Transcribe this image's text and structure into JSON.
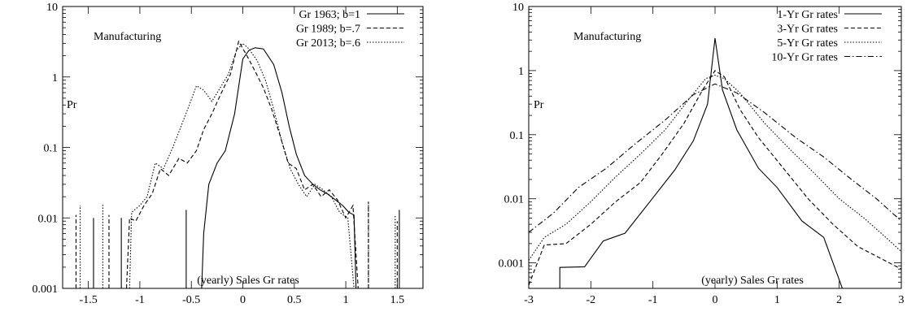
{
  "chart_data": [
    {
      "type": "line",
      "annotations": {
        "sector": "Manufacturing",
        "ylabel": "Pr",
        "xlabel": "(yearly) Sales Gr rates"
      },
      "y_scale": "log",
      "ylim": [
        0.001,
        10
      ],
      "xlim": [
        -1.75,
        1.75
      ],
      "x_ticks": [
        {
          "v": -1.5,
          "label": "-1.5"
        },
        {
          "v": -1,
          "label": "-1"
        },
        {
          "v": -0.5,
          "label": "-0.5"
        },
        {
          "v": 0,
          "label": "0"
        },
        {
          "v": 0.5,
          "label": "0.5"
        },
        {
          "v": 1,
          "label": "1"
        },
        {
          "v": 1.5,
          "label": "1.5"
        }
      ],
      "y_ticks": [
        {
          "v": 0.001,
          "label": "0.001"
        },
        {
          "v": 0.01,
          "label": "0.01"
        },
        {
          "v": 0.1,
          "label": "0.1"
        },
        {
          "v": 1,
          "label": "1"
        },
        {
          "v": 10,
          "label": "10"
        }
      ],
      "legend_position": "top-right",
      "series": [
        {
          "name": "Gr 1963; b=1",
          "dash": "",
          "points": [
            [
              -0.4,
              0.001
            ],
            [
              -0.38,
              0.006
            ],
            [
              -0.33,
              0.03
            ],
            [
              -0.25,
              0.06
            ],
            [
              -0.17,
              0.09
            ],
            [
              -0.08,
              0.3
            ],
            [
              0.0,
              1.8
            ],
            [
              0.06,
              2.4
            ],
            [
              0.12,
              2.6
            ],
            [
              0.2,
              2.5
            ],
            [
              0.3,
              1.5
            ],
            [
              0.38,
              0.6
            ],
            [
              0.45,
              0.2
            ],
            [
              0.52,
              0.08
            ],
            [
              0.6,
              0.04
            ],
            [
              0.68,
              0.03
            ],
            [
              0.75,
              0.025
            ],
            [
              0.82,
              0.022
            ],
            [
              0.9,
              0.018
            ],
            [
              0.97,
              0.015
            ],
            [
              1.03,
              0.012
            ],
            [
              1.08,
              0.011
            ],
            [
              1.1,
              0.001
            ]
          ],
          "spikes": [
            [
              -1.45,
              0.01
            ],
            [
              -1.18,
              0.01
            ],
            [
              -0.55,
              0.013
            ],
            [
              1.52,
              0.013
            ],
            [
              1.75,
              0.009
            ]
          ]
        },
        {
          "name": "Gr 1989; b=.7",
          "dash": "5,3",
          "points": [
            [
              -1.13,
              0.001
            ],
            [
              -1.1,
              0.01
            ],
            [
              -1.04,
              0.009
            ],
            [
              -0.96,
              0.015
            ],
            [
              -0.88,
              0.022
            ],
            [
              -0.8,
              0.05
            ],
            [
              -0.72,
              0.04
            ],
            [
              -0.62,
              0.07
            ],
            [
              -0.54,
              0.06
            ],
            [
              -0.45,
              0.09
            ],
            [
              -0.38,
              0.18
            ],
            [
              -0.3,
              0.3
            ],
            [
              -0.22,
              0.55
            ],
            [
              -0.12,
              1.1
            ],
            [
              -0.04,
              3.2
            ],
            [
              0.04,
              2.0
            ],
            [
              0.12,
              1.2
            ],
            [
              0.2,
              0.7
            ],
            [
              0.28,
              0.35
            ],
            [
              0.36,
              0.15
            ],
            [
              0.44,
              0.06
            ],
            [
              0.52,
              0.05
            ],
            [
              0.6,
              0.025
            ],
            [
              0.68,
              0.03
            ],
            [
              0.76,
              0.02
            ],
            [
              0.84,
              0.025
            ],
            [
              0.92,
              0.018
            ],
            [
              1.0,
              0.01
            ],
            [
              1.07,
              0.015
            ],
            [
              1.12,
              0.001
            ]
          ],
          "spikes": [
            [
              -1.62,
              0.011
            ],
            [
              -1.3,
              0.011
            ],
            [
              1.22,
              0.017
            ],
            [
              1.5,
              0.009
            ]
          ]
        },
        {
          "name": "Gr 2013; b=.6",
          "dash": "1.5,2",
          "points": [
            [
              -1.1,
              0.001
            ],
            [
              -1.08,
              0.012
            ],
            [
              -1.0,
              0.015
            ],
            [
              -0.93,
              0.02
            ],
            [
              -0.85,
              0.06
            ],
            [
              -0.77,
              0.05
            ],
            [
              -0.68,
              0.1
            ],
            [
              -0.6,
              0.2
            ],
            [
              -0.52,
              0.4
            ],
            [
              -0.45,
              0.75
            ],
            [
              -0.38,
              0.65
            ],
            [
              -0.3,
              0.45
            ],
            [
              -0.22,
              0.7
            ],
            [
              -0.14,
              1.1
            ],
            [
              -0.06,
              2.4
            ],
            [
              0.0,
              3.0
            ],
            [
              0.06,
              2.5
            ],
            [
              0.14,
              1.7
            ],
            [
              0.22,
              0.9
            ],
            [
              0.3,
              0.35
            ],
            [
              0.38,
              0.12
            ],
            [
              0.46,
              0.05
            ],
            [
              0.54,
              0.03
            ],
            [
              0.62,
              0.02
            ],
            [
              0.7,
              0.03
            ],
            [
              0.78,
              0.025
            ],
            [
              0.86,
              0.02
            ],
            [
              0.94,
              0.012
            ],
            [
              1.02,
              0.01
            ],
            [
              1.08,
              0.001
            ]
          ],
          "spikes": [
            [
              -1.58,
              0.015
            ],
            [
              -1.36,
              0.016
            ],
            [
              1.22,
              0.017
            ],
            [
              1.48,
              0.011
            ]
          ]
        }
      ]
    },
    {
      "type": "line",
      "annotations": {
        "sector": "Manufacturing",
        "ylabel": "Pr",
        "xlabel": "(yearly) Sales Gr rates"
      },
      "y_scale": "log",
      "ylim": [
        0.0004,
        10
      ],
      "xlim": [
        -3,
        3
      ],
      "x_ticks": [
        {
          "v": -3,
          "label": "-3"
        },
        {
          "v": -2,
          "label": "-2"
        },
        {
          "v": -1,
          "label": "-1"
        },
        {
          "v": 0,
          "label": "0"
        },
        {
          "v": 1,
          "label": "1"
        },
        {
          "v": 2,
          "label": "2"
        },
        {
          "v": 3,
          "label": "3"
        }
      ],
      "y_ticks": [
        {
          "v": 0.001,
          "label": "0.001"
        },
        {
          "v": 0.01,
          "label": "0.01"
        },
        {
          "v": 0.1,
          "label": "0.1"
        },
        {
          "v": 1,
          "label": "1"
        },
        {
          "v": 10,
          "label": "10"
        }
      ],
      "legend_position": "top-right",
      "series": [
        {
          "name": "1-Yr Gr rates",
          "dash": "",
          "points": [
            [
              -2.5,
              0.0004
            ],
            [
              -2.5,
              0.00085
            ],
            [
              -2.1,
              0.00087
            ],
            [
              -1.8,
              0.0022
            ],
            [
              -1.45,
              0.0029
            ],
            [
              -1.05,
              0.009
            ],
            [
              -0.65,
              0.028
            ],
            [
              -0.35,
              0.08
            ],
            [
              -0.12,
              0.3
            ],
            [
              0.0,
              3.2
            ],
            [
              0.12,
              0.5
            ],
            [
              0.35,
              0.12
            ],
            [
              0.7,
              0.03
            ],
            [
              1.0,
              0.015
            ],
            [
              1.4,
              0.0045
            ],
            [
              1.75,
              0.0025
            ],
            [
              2.05,
              0.0004
            ]
          ]
        },
        {
          "name": "3-Yr Gr rates",
          "dash": "5,3",
          "points": [
            [
              -3.0,
              0.00045
            ],
            [
              -2.75,
              0.0019
            ],
            [
              -2.4,
              0.002
            ],
            [
              -2.0,
              0.004
            ],
            [
              -1.6,
              0.009
            ],
            [
              -1.2,
              0.018
            ],
            [
              -0.85,
              0.05
            ],
            [
              -0.5,
              0.15
            ],
            [
              -0.2,
              0.5
            ],
            [
              0.0,
              1.0
            ],
            [
              0.15,
              0.8
            ],
            [
              0.4,
              0.25
            ],
            [
              0.7,
              0.09
            ],
            [
              1.1,
              0.03
            ],
            [
              1.5,
              0.01
            ],
            [
              1.9,
              0.004
            ],
            [
              2.3,
              0.0018
            ],
            [
              2.65,
              0.0012
            ],
            [
              3.0,
              0.0008
            ]
          ]
        },
        {
          "name": "5-Yr Gr rates",
          "dash": "1.5,2",
          "points": [
            [
              -3.0,
              0.0011
            ],
            [
              -2.75,
              0.0025
            ],
            [
              -2.4,
              0.004
            ],
            [
              -2.0,
              0.009
            ],
            [
              -1.6,
              0.022
            ],
            [
              -1.2,
              0.05
            ],
            [
              -0.8,
              0.12
            ],
            [
              -0.4,
              0.38
            ],
            [
              -0.15,
              0.75
            ],
            [
              0.0,
              0.85
            ],
            [
              0.15,
              0.75
            ],
            [
              0.4,
              0.45
            ],
            [
              0.8,
              0.15
            ],
            [
              1.2,
              0.06
            ],
            [
              1.6,
              0.025
            ],
            [
              2.0,
              0.01
            ],
            [
              2.4,
              0.005
            ],
            [
              2.75,
              0.0025
            ],
            [
              3.0,
              0.0015
            ]
          ]
        },
        {
          "name": "10-Yr Gr rates",
          "dash": "7,3,1.5,3",
          "points": [
            [
              -3.0,
              0.003
            ],
            [
              -2.6,
              0.006
            ],
            [
              -2.2,
              0.015
            ],
            [
              -1.75,
              0.03
            ],
            [
              -1.3,
              0.07
            ],
            [
              -0.8,
              0.17
            ],
            [
              -0.35,
              0.42
            ],
            [
              0.0,
              0.62
            ],
            [
              0.35,
              0.45
            ],
            [
              0.8,
              0.22
            ],
            [
              1.3,
              0.09
            ],
            [
              1.75,
              0.045
            ],
            [
              2.2,
              0.02
            ],
            [
              2.6,
              0.01
            ],
            [
              3.0,
              0.0045
            ]
          ]
        }
      ]
    }
  ]
}
